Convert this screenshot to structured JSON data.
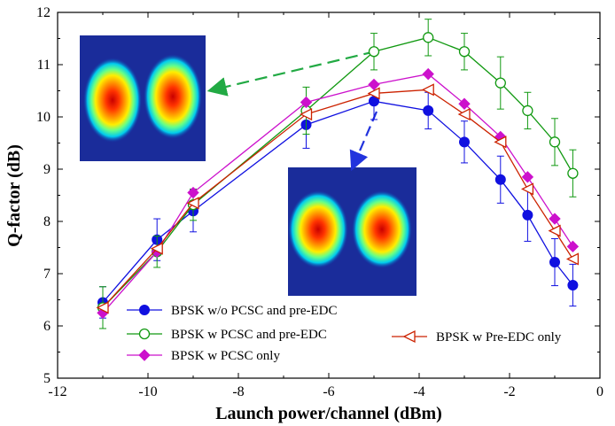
{
  "chart_data": {
    "type": "line",
    "title": "",
    "xlabel": "Launch power/channel (dBm)",
    "ylabel": "Q-factor (dB)",
    "xlim": [
      -12,
      0
    ],
    "ylim": [
      5,
      12
    ],
    "xticks": [
      -12,
      -10,
      -8,
      -6,
      -4,
      -2,
      0
    ],
    "yticks": [
      5,
      6,
      7,
      8,
      9,
      10,
      11,
      12
    ],
    "grid": false,
    "series": [
      {
        "name": "BPSK w/o PCSC and pre-EDC",
        "color": "#1010e0",
        "marker": "circle-filled",
        "x": [
          -11,
          -9.8,
          -9,
          -6.5,
          -5,
          -3.8,
          -3,
          -2.2,
          -1.6,
          -1,
          -0.6
        ],
        "y": [
          6.45,
          7.65,
          8.2,
          9.85,
          10.3,
          10.12,
          9.52,
          8.8,
          8.12,
          7.22,
          6.78
        ],
        "err": [
          0.3,
          0.4,
          0.4,
          0.45,
          0.35,
          0.35,
          0.4,
          0.45,
          0.5,
          0.45,
          0.4
        ]
      },
      {
        "name": "BPSK w PCSC and pre-EDC",
        "color": "#119911",
        "marker": "circle-open",
        "x": [
          -11,
          -9.8,
          -9,
          -6.5,
          -5,
          -3.8,
          -3,
          -2.2,
          -1.6,
          -1,
          -0.6
        ],
        "y": [
          6.35,
          7.42,
          8.32,
          10.12,
          11.25,
          11.52,
          11.25,
          10.65,
          10.12,
          9.52,
          8.92
        ],
        "err": [
          0.4,
          0.3,
          0.3,
          0.45,
          0.35,
          0.35,
          0.35,
          0.5,
          0.35,
          0.45,
          0.45
        ]
      },
      {
        "name": "BPSK w PCSC only",
        "color": "#cc11cc",
        "marker": "diamond-filled",
        "x": [
          -11,
          -9.8,
          -9,
          -6.5,
          -5,
          -3.8,
          -3,
          -2.2,
          -1.6,
          -1,
          -0.6
        ],
        "y": [
          6.25,
          7.42,
          8.55,
          10.28,
          10.62,
          10.82,
          10.25,
          9.62,
          8.85,
          8.05,
          7.52
        ]
      },
      {
        "name": "BPSK w Pre-EDC only",
        "color": "#cc2200",
        "marker": "triangle-left-open",
        "x": [
          -11,
          -9.8,
          -9,
          -6.5,
          -5,
          -3.8,
          -3,
          -2.2,
          -1.6,
          -1,
          -0.6
        ],
        "y": [
          6.35,
          7.48,
          8.35,
          10.05,
          10.45,
          10.52,
          10.05,
          9.52,
          8.62,
          7.82,
          7.28
        ]
      }
    ],
    "legend": [
      {
        "label": "BPSK w/o PCSC and pre-EDC",
        "series": 0
      },
      {
        "label": "BPSK w PCSC and pre-EDC",
        "series": 1
      },
      {
        "label": "BPSK w PCSC only",
        "series": 2
      },
      {
        "label": "BPSK w Pre-EDC only",
        "series": 3
      }
    ],
    "annotations": [
      {
        "type": "inset-image",
        "content": "two-lobe constellation heatmap",
        "points_to": {
          "x": -5,
          "y": 11.25
        },
        "arrow_color": "#22aa44"
      },
      {
        "type": "inset-image",
        "content": "two-lobe constellation heatmap",
        "points_to": {
          "x": -5,
          "y": 10.3
        },
        "arrow_color": "#2233dd"
      }
    ]
  }
}
